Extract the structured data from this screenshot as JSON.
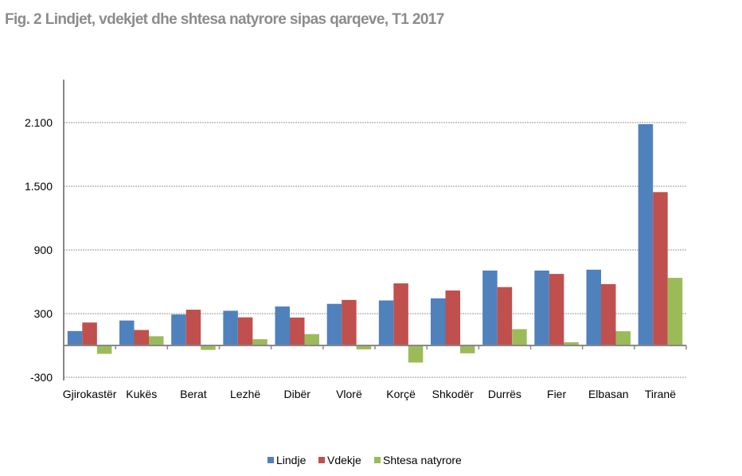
{
  "chart_data": {
    "type": "bar",
    "title": "Fig. 2 Lindjet, vdekjet dhe shtesa natyrore sipas qarqeve, T1 2017",
    "xlabel": "",
    "ylabel": "",
    "categories": [
      "Gjirokastër",
      "Kukës",
      "Berat",
      "Lezhë",
      "Dibër",
      "Vlorë",
      "Korçë",
      "Shkodër",
      "Durrës",
      "Fier",
      "Elbasan",
      "Tiranë"
    ],
    "series": [
      {
        "name": "Lindje",
        "color": "#4f81bd",
        "values": [
          136,
          235,
          292,
          327,
          367,
          392,
          424,
          444,
          706,
          706,
          714,
          2085
        ]
      },
      {
        "name": "Vdekje",
        "color": "#c0504d",
        "values": [
          216,
          146,
          337,
          265,
          263,
          429,
          585,
          518,
          550,
          674,
          578,
          1445
        ]
      },
      {
        "name": "Shtesa natyrore",
        "color": "#9bbb59",
        "values": [
          -79,
          87,
          -42,
          59,
          107,
          -37,
          -161,
          -74,
          154,
          30,
          134,
          637
        ]
      }
    ],
    "yticks": [
      -300,
      300,
      900,
      1500,
      2100
    ],
    "ytick_labels": [
      "-300",
      "300",
      "900",
      "1.500",
      "2.100"
    ],
    "ylim": [
      -300,
      2100
    ],
    "grid": "horizontal dotted",
    "legend": "bottom"
  }
}
